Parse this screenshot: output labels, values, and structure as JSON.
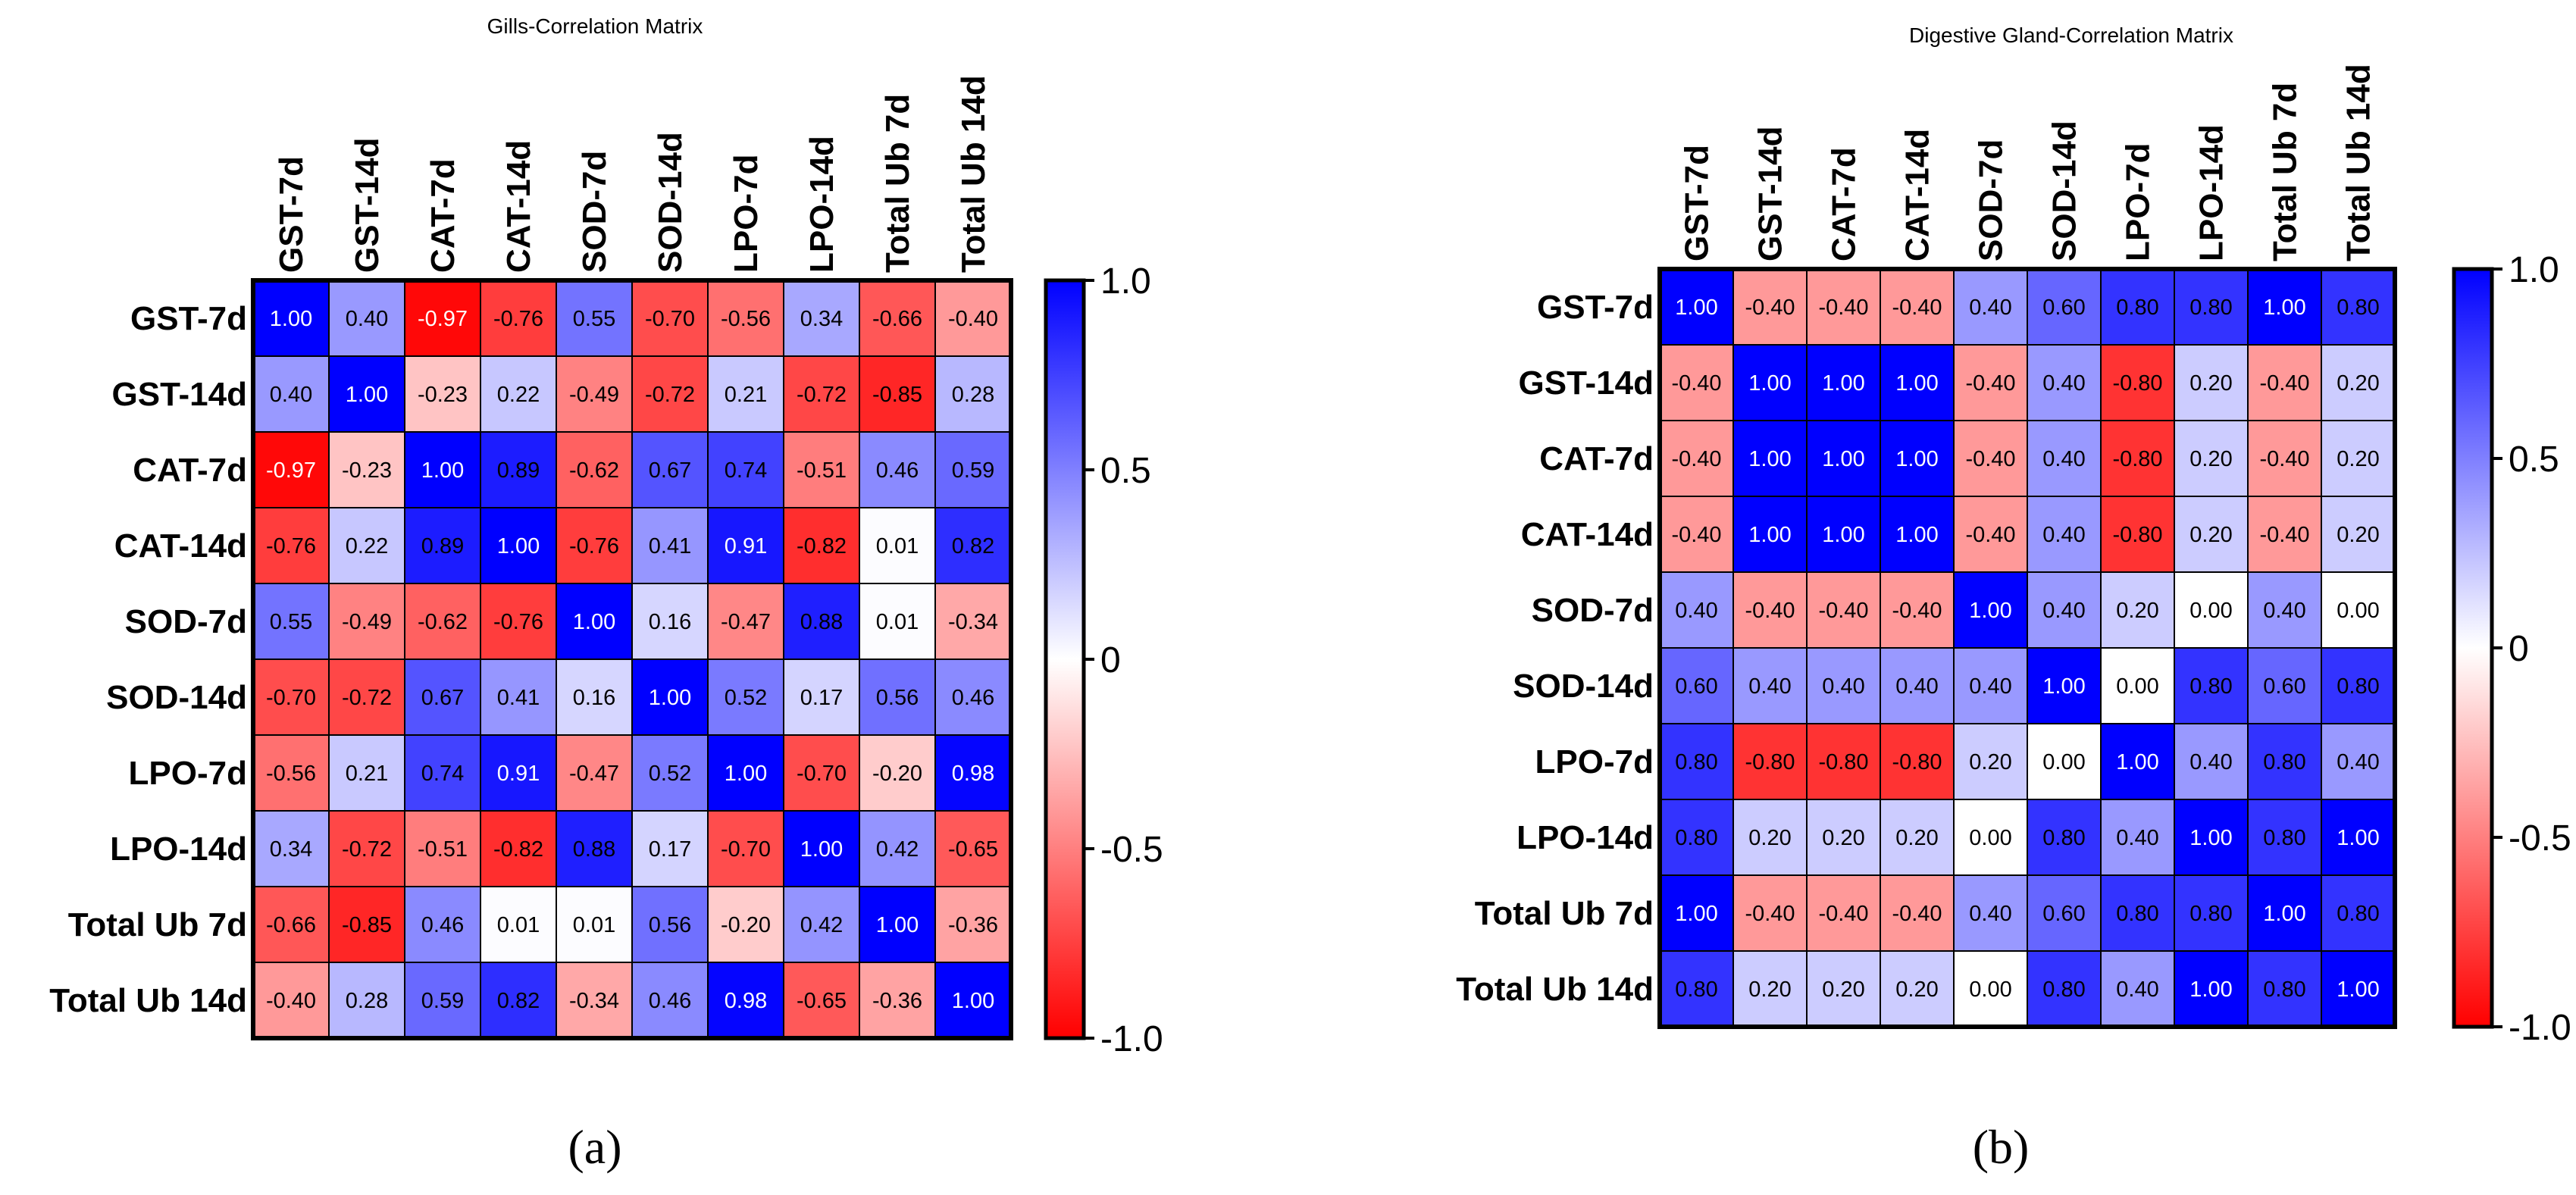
{
  "figure": {
    "panel_labels": [
      "(a)",
      "(b)"
    ]
  },
  "colors": {
    "negative": "#ff0000",
    "zero": "#ffffff",
    "positive": "#0000ff"
  },
  "chart_data": [
    {
      "type": "heatmap",
      "title": "Gills-Correlation Matrix",
      "labels": [
        "GST-7d",
        "GST-14d",
        "CAT-7d",
        "CAT-14d",
        "SOD-7d",
        "SOD-14d",
        "LPO-7d",
        "LPO-14d",
        "Total Ub 7d",
        "Total Ub 14d"
      ],
      "values": [
        [
          1.0,
          0.4,
          -0.97,
          -0.76,
          0.55,
          -0.7,
          -0.56,
          0.34,
          -0.66,
          -0.4
        ],
        [
          0.4,
          1.0,
          -0.23,
          0.22,
          -0.49,
          -0.72,
          0.21,
          -0.72,
          -0.85,
          0.28
        ],
        [
          -0.97,
          -0.23,
          1.0,
          0.89,
          -0.62,
          0.67,
          0.74,
          -0.51,
          0.46,
          0.59
        ],
        [
          -0.76,
          0.22,
          0.89,
          1.0,
          -0.76,
          0.41,
          0.91,
          -0.82,
          0.01,
          0.82
        ],
        [
          0.55,
          -0.49,
          -0.62,
          -0.76,
          1.0,
          0.16,
          -0.47,
          0.88,
          0.01,
          -0.34
        ],
        [
          -0.7,
          -0.72,
          0.67,
          0.41,
          0.16,
          1.0,
          0.52,
          0.17,
          0.56,
          0.46
        ],
        [
          -0.56,
          0.21,
          0.74,
          0.91,
          -0.47,
          0.52,
          1.0,
          -0.7,
          -0.2,
          0.98
        ],
        [
          0.34,
          -0.72,
          -0.51,
          -0.82,
          0.88,
          0.17,
          -0.7,
          1.0,
          0.42,
          -0.65
        ],
        [
          -0.66,
          -0.85,
          0.46,
          0.01,
          0.01,
          0.56,
          -0.2,
          0.42,
          1.0,
          -0.36
        ],
        [
          -0.4,
          0.28,
          0.59,
          0.82,
          -0.34,
          0.46,
          0.98,
          -0.65,
          -0.36,
          1.0
        ]
      ],
      "value_labels": [
        [
          "1.00",
          "0.40",
          "-0.97",
          "-0.76",
          "0.55",
          "-0.70",
          "-0.56",
          "0.34",
          "-0.66",
          "-0.40"
        ],
        [
          "0.40",
          "1.00",
          "-0.23",
          "0.22",
          "-0.49",
          "-0.72",
          "0.21",
          "-0.72",
          "-0.85",
          "0.28"
        ],
        [
          "-0.97",
          "-0.23",
          "1.00",
          "0.89",
          "-0.62",
          "0.67",
          "0.74",
          "-0.51",
          "0.46",
          "0.59"
        ],
        [
          "-0.76",
          "0.22",
          "0.89",
          "1.00",
          "-0.76",
          "0.41",
          "0.91",
          "-0.82",
          "0.01",
          "0.82"
        ],
        [
          "0.55",
          "-0.49",
          "-0.62",
          "-0.76",
          "1.00",
          "0.16",
          "-0.47",
          "0.88",
          "0.01",
          "-0.34"
        ],
        [
          "-0.70",
          "-0.72",
          "0.67",
          "0.41",
          "0.16",
          "1.00",
          "0.52",
          "0.17",
          "0.56",
          "0.46"
        ],
        [
          "-0.56",
          "0.21",
          "0.74",
          "0.91",
          "-0.47",
          "0.52",
          "1.00",
          "-0.70",
          "-0.20",
          "0.98"
        ],
        [
          "0.34",
          "-0.72",
          "-0.51",
          "-0.82",
          "0.88",
          "0.17",
          "-0.70",
          "1.00",
          "0.42",
          "-0.65"
        ],
        [
          "-0.66",
          "-0.85",
          "0.46",
          "0.01",
          "0.01",
          "0.56",
          "-0.20",
          "0.42",
          "1.00",
          "-0.36"
        ],
        [
          "-0.40",
          "0.28",
          "0.59",
          "0.82",
          "-0.34",
          "0.46",
          "0.98",
          "-0.65",
          "-0.36",
          "1.00"
        ]
      ],
      "colorbar": {
        "range": [
          -1.0,
          1.0
        ],
        "ticks": [
          "1.0",
          "0.5",
          "0",
          "-0.5",
          "-1.0"
        ]
      }
    },
    {
      "type": "heatmap",
      "title": "Digestive Gland-Correlation Matrix",
      "labels": [
        "GST-7d",
        "GST-14d",
        "CAT-7d",
        "CAT-14d",
        "SOD-7d",
        "SOD-14d",
        "LPO-7d",
        "LPO-14d",
        "Total Ub 7d",
        "Total Ub 14d"
      ],
      "values": [
        [
          1.0,
          -0.4,
          -0.4,
          -0.4,
          0.4,
          0.6,
          0.8,
          0.8,
          1.0,
          0.8
        ],
        [
          -0.4,
          1.0,
          1.0,
          1.0,
          -0.4,
          0.4,
          -0.8,
          0.2,
          -0.4,
          0.2
        ],
        [
          -0.4,
          1.0,
          1.0,
          1.0,
          -0.4,
          0.4,
          -0.8,
          0.2,
          -0.4,
          0.2
        ],
        [
          -0.4,
          1.0,
          1.0,
          1.0,
          -0.4,
          0.4,
          -0.8,
          0.2,
          -0.4,
          0.2
        ],
        [
          0.4,
          -0.4,
          -0.4,
          -0.4,
          1.0,
          0.4,
          0.2,
          0.0,
          0.4,
          0.0
        ],
        [
          0.6,
          0.4,
          0.4,
          0.4,
          0.4,
          1.0,
          0.0,
          0.8,
          0.6,
          0.8
        ],
        [
          0.8,
          -0.8,
          -0.8,
          -0.8,
          0.2,
          0.0,
          1.0,
          0.4,
          0.8,
          0.4
        ],
        [
          0.8,
          0.2,
          0.2,
          0.2,
          0.0,
          0.8,
          0.4,
          1.0,
          0.8,
          1.0
        ],
        [
          1.0,
          -0.4,
          -0.4,
          -0.4,
          0.4,
          0.6,
          0.8,
          0.8,
          1.0,
          0.8
        ],
        [
          0.8,
          0.2,
          0.2,
          0.2,
          0.0,
          0.8,
          0.4,
          1.0,
          0.8,
          1.0
        ]
      ],
      "value_labels": [
        [
          "1.00",
          "-0.40",
          "-0.40",
          "-0.40",
          "0.40",
          "0.60",
          "0.80",
          "0.80",
          "1.00",
          "0.80"
        ],
        [
          "-0.40",
          "1.00",
          "1.00",
          "1.00",
          "-0.40",
          "0.40",
          "-0.80",
          "0.20",
          "-0.40",
          "0.20"
        ],
        [
          "-0.40",
          "1.00",
          "1.00",
          "1.00",
          "-0.40",
          "0.40",
          "-0.80",
          "0.20",
          "-0.40",
          "0.20"
        ],
        [
          "-0.40",
          "1.00",
          "1.00",
          "1.00",
          "-0.40",
          "0.40",
          "-0.80",
          "0.20",
          "-0.40",
          "0.20"
        ],
        [
          "0.40",
          "-0.40",
          "-0.40",
          "-0.40",
          "1.00",
          "0.40",
          "0.20",
          "0.00",
          "0.40",
          "0.00"
        ],
        [
          "0.60",
          "0.40",
          "0.40",
          "0.40",
          "0.40",
          "1.00",
          "0.00",
          "0.80",
          "0.60",
          "0.80"
        ],
        [
          "0.80",
          "-0.80",
          "-0.80",
          "-0.80",
          "0.20",
          "0.00",
          "1.00",
          "0.40",
          "0.80",
          "0.40"
        ],
        [
          "0.80",
          "0.20",
          "0.20",
          "0.20",
          "0.00",
          "0.80",
          "0.40",
          "1.00",
          "0.80",
          "1.00"
        ],
        [
          "1.00",
          "-0.40",
          "-0.40",
          "-0.40",
          "0.40",
          "0.60",
          "0.80",
          "0.80",
          "1.00",
          "0.80"
        ],
        [
          "0.80",
          "0.20",
          "0.20",
          "0.20",
          "0.00",
          "0.80",
          "0.40",
          "1.00",
          "0.80",
          "1.00"
        ]
      ],
      "colorbar": {
        "range": [
          -1.0,
          1.0
        ],
        "ticks": [
          "1.0",
          "0.5",
          "0",
          "-0.5",
          "-1.0"
        ]
      }
    }
  ]
}
